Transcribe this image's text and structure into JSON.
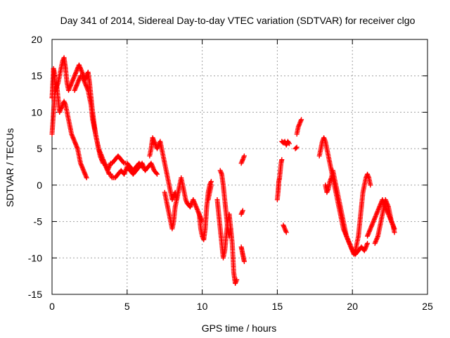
{
  "chart_data": {
    "type": "scatter",
    "title": "Day 341 of 2014, Sidereal Day-to-day VTEC variation (SDTVAR) for receiver clgo",
    "xlabel": "GPS time / hours",
    "ylabel": "SDTVAR / TECUs",
    "xlim": [
      0,
      25
    ],
    "ylim": [
      -15,
      20
    ],
    "xticks": [
      0,
      5,
      10,
      15,
      20,
      25
    ],
    "yticks": [
      -15,
      -10,
      -5,
      0,
      5,
      10,
      15,
      20
    ],
    "grid": true,
    "marker": "+",
    "series": [
      {
        "name": "SDTVAR",
        "color": "#ff0000",
        "segments": [
          {
            "x": [
              0.0,
              0.05,
              0.1,
              0.15,
              0.2,
              0.25,
              0.3,
              0.4,
              0.5,
              0.6,
              0.7,
              0.8,
              0.9,
              1.0,
              1.1,
              1.2,
              1.3,
              1.4,
              1.5,
              1.6,
              1.7,
              1.8,
              1.9,
              2.0,
              2.1,
              2.2,
              2.3,
              2.4,
              2.5,
              2.6,
              2.7,
              2.8,
              2.9,
              3.0,
              3.1,
              3.2,
              3.3,
              3.4,
              3.5,
              3.6,
              3.7,
              3.8,
              3.9,
              4.0,
              4.2,
              4.4,
              4.6,
              4.8,
              5.0,
              5.2,
              5.4,
              5.6,
              5.8,
              6.0,
              6.2,
              6.4,
              6.6,
              6.8,
              7.0
            ],
            "y": [
              12.0,
              14.0,
              16.0,
              15.5,
              14.0,
              13.0,
              13.5,
              14.0,
              15.0,
              16.0,
              17.0,
              17.5,
              16.0,
              14.0,
              13.0,
              13.5,
              14.0,
              14.5,
              15.0,
              15.5,
              16.0,
              16.5,
              16.0,
              15.5,
              15.0,
              14.5,
              15.0,
              15.5,
              14.0,
              12.0,
              10.0,
              8.5,
              7.0,
              6.0,
              5.0,
              4.5,
              4.0,
              3.5,
              3.0,
              2.5,
              2.0,
              1.5,
              1.5,
              1.0,
              1.0,
              1.5,
              2.0,
              1.5,
              2.5,
              2.0,
              1.5,
              2.0,
              2.5,
              3.0,
              2.0,
              2.5,
              3.0,
              2.0,
              1.5
            ]
          },
          {
            "x": [
              0.0,
              0.1,
              0.2,
              0.3,
              0.4,
              0.5,
              0.6,
              0.7,
              0.8,
              0.9,
              1.0,
              1.1,
              1.2,
              1.3,
              1.4,
              1.5,
              1.6,
              1.7,
              1.8,
              1.9,
              2.0,
              2.1,
              2.2,
              2.3
            ],
            "y": [
              7.0,
              10.0,
              13.0,
              14.0,
              12.0,
              10.0,
              10.5,
              11.0,
              11.5,
              11.0,
              10.0,
              9.0,
              8.0,
              7.0,
              6.5,
              6.0,
              5.5,
              5.0,
              4.0,
              3.0,
              2.5,
              2.0,
              1.5,
              1.0
            ]
          },
          {
            "x": [
              1.5,
              1.6,
              1.7,
              1.8,
              1.9,
              2.0,
              2.1,
              2.2,
              2.3,
              2.4,
              2.5,
              2.6,
              2.7,
              2.8,
              2.9,
              3.0,
              3.1,
              3.2,
              3.3,
              3.4,
              3.5,
              3.6,
              3.7,
              3.8,
              3.9,
              4.0,
              4.2,
              4.4,
              4.6,
              4.8,
              5.0,
              5.2,
              5.4,
              5.6,
              5.8,
              6.0
            ],
            "y": [
              13.0,
              13.5,
              14.0,
              14.5,
              15.0,
              15.0,
              14.5,
              14.0,
              13.5,
              13.0,
              12.0,
              11.0,
              9.0,
              8.0,
              7.0,
              6.0,
              5.0,
              4.0,
              3.5,
              3.0,
              3.0,
              2.5,
              2.0,
              2.5,
              3.0,
              3.0,
              3.5,
              4.0,
              3.5,
              3.0,
              3.0,
              2.5,
              2.0,
              2.5,
              3.0,
              2.5
            ]
          },
          {
            "x": [
              6.5,
              6.6,
              6.7,
              6.8,
              6.9,
              7.0,
              7.1,
              7.2,
              7.3,
              7.4,
              7.5,
              7.6,
              7.7,
              7.8,
              7.9,
              8.0,
              8.1,
              8.2,
              8.3,
              8.4,
              8.5,
              8.6,
              8.7,
              8.8,
              8.9,
              9.0,
              9.2,
              9.4,
              9.6,
              9.8,
              10.0
            ],
            "y": [
              4.0,
              5.0,
              6.5,
              6.0,
              5.5,
              5.0,
              5.5,
              6.0,
              5.0,
              4.0,
              3.0,
              2.0,
              1.0,
              0.0,
              -1.0,
              -2.0,
              -1.5,
              -1.0,
              -2.0,
              -1.0,
              0.0,
              1.0,
              0.0,
              -1.0,
              -2.0,
              -2.5,
              -3.0,
              -2.0,
              -3.0,
              -4.0,
              -5.0
            ]
          },
          {
            "x": [
              7.5,
              7.6,
              7.7,
              7.8,
              7.9,
              8.0,
              8.1,
              8.2,
              8.3,
              8.4
            ],
            "y": [
              -1.0,
              -2.0,
              -3.0,
              -4.0,
              -5.0,
              -6.0,
              -5.0,
              -3.0,
              -2.0,
              -1.0
            ]
          },
          {
            "x": [
              9.8,
              9.9,
              10.0,
              10.1,
              10.2,
              10.3,
              10.4,
              10.5,
              10.6
            ],
            "y": [
              -4.0,
              -6.0,
              -7.0,
              -7.5,
              -6.0,
              -3.0,
              -1.0,
              0.0,
              0.5
            ]
          },
          {
            "x": [
              10.4,
              10.5,
              10.6
            ],
            "y": [
              -2.0,
              -1.0,
              0.0
            ]
          },
          {
            "x": [
              11.0,
              11.1,
              11.2,
              11.3,
              11.4,
              11.5,
              11.6,
              11.7,
              11.8,
              11.9,
              12.0,
              12.1,
              12.2,
              12.3
            ],
            "y": [
              -2.0,
              -4.0,
              -6.0,
              -8.0,
              -10.0,
              -9.0,
              -7.0,
              -5.0,
              -4.0,
              -6.0,
              -8.0,
              -12.0,
              -13.5,
              -13.0
            ]
          },
          {
            "x": [
              11.2,
              11.3,
              11.4,
              11.5,
              11.6,
              11.7,
              11.8,
              11.9
            ],
            "y": [
              2.0,
              1.5,
              0.0,
              -2.0,
              -4.0,
              -6.0,
              -7.0,
              -6.0
            ]
          },
          {
            "x": [
              12.6,
              12.7,
              12.8
            ],
            "y": [
              3.0,
              3.5,
              4.0
            ]
          },
          {
            "x": [
              12.6,
              12.65,
              12.7,
              12.75,
              12.8
            ],
            "y": [
              -8.5,
              -9.0,
              -9.5,
              -10.0,
              -10.5
            ]
          },
          {
            "x": [
              12.6,
              12.7
            ],
            "y": [
              -4.0,
              -3.5
            ]
          },
          {
            "x": [
              15.0,
              15.05,
              15.1,
              15.15,
              15.2,
              15.25,
              15.3
            ],
            "y": [
              -2.0,
              -1.0,
              0.5,
              1.0,
              2.0,
              3.0,
              3.5
            ]
          },
          {
            "x": [
              15.3,
              15.4,
              15.5,
              15.6,
              15.7,
              15.8
            ],
            "y": [
              6.0,
              5.8,
              6.0,
              5.5,
              6.0,
              5.7
            ]
          },
          {
            "x": [
              15.4,
              15.5,
              15.6
            ],
            "y": [
              -5.5,
              -6.0,
              -6.5
            ]
          },
          {
            "x": [
              16.2,
              16.3
            ],
            "y": [
              5.0,
              5.2
            ]
          },
          {
            "x": [
              16.3,
              16.4,
              16.5,
              16.6
            ],
            "y": [
              7.0,
              8.0,
              8.5,
              9.0
            ]
          },
          {
            "x": [
              17.8,
              17.9,
              18.0,
              18.1,
              18.2,
              18.3,
              18.4,
              18.5,
              18.6,
              18.7,
              18.8,
              18.9,
              19.0,
              19.1,
              19.2,
              19.3,
              19.4,
              19.5,
              19.6,
              19.7,
              19.8,
              19.9,
              20.0,
              20.1,
              20.2,
              20.3,
              20.4,
              20.5,
              20.6,
              20.7,
              20.8,
              20.9,
              21.0,
              21.1,
              21.2
            ],
            "y": [
              4.0,
              5.0,
              6.0,
              6.5,
              6.0,
              5.0,
              4.0,
              3.0,
              2.0,
              1.0,
              0.0,
              -1.0,
              -2.0,
              -3.0,
              -4.0,
              -5.0,
              -6.0,
              -6.5,
              -7.0,
              -7.5,
              -8.0,
              -8.5,
              -9.0,
              -9.5,
              -9.0,
              -8.0,
              -7.0,
              -5.0,
              -3.0,
              -1.0,
              0.0,
              1.0,
              1.5,
              1.0,
              0.0
            ]
          },
          {
            "x": [
              18.2,
              18.3,
              18.4,
              18.5,
              18.6,
              18.7,
              18.8,
              18.9,
              19.0,
              19.1,
              19.2,
              19.3,
              19.4,
              19.5,
              19.6,
              19.7,
              19.8,
              19.9,
              20.0,
              20.2,
              20.4,
              20.6,
              20.8,
              21.0
            ],
            "y": [
              0.0,
              -1.0,
              -0.5,
              0.5,
              1.0,
              2.0,
              1.0,
              0.0,
              -1.0,
              -2.0,
              -3.0,
              -4.0,
              -5.0,
              -6.0,
              -7.0,
              -7.5,
              -8.0,
              -8.5,
              -9.0,
              -9.5,
              -9.0,
              -8.5,
              -9.0,
              -8.0
            ]
          },
          {
            "x": [
              21.0,
              21.2,
              21.4,
              21.6,
              21.8,
              22.0,
              22.2,
              22.4,
              22.6,
              22.8
            ],
            "y": [
              -7.0,
              -6.0,
              -5.0,
              -4.0,
              -3.0,
              -2.0,
              -3.0,
              -4.0,
              -5.0,
              -6.0
            ]
          },
          {
            "x": [
              21.5,
              21.6,
              21.7,
              21.8,
              21.9,
              22.0,
              22.1,
              22.2,
              22.3,
              22.4,
              22.5,
              22.6,
              22.7,
              22.8
            ],
            "y": [
              -8.0,
              -7.5,
              -7.0,
              -6.0,
              -5.0,
              -4.0,
              -3.0,
              -2.0,
              -2.5,
              -3.0,
              -4.0,
              -5.0,
              -5.5,
              -6.5
            ]
          }
        ]
      }
    ]
  }
}
